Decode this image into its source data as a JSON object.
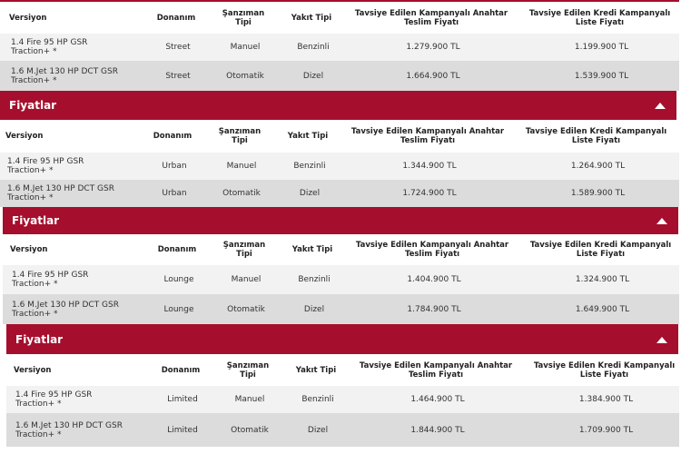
{
  "sections": [
    {
      "headers": [
        "Versiyon",
        "Donanım",
        "Şanzıman Tipi",
        "Yakıt Tipi",
        "Tavsiye Edilen Kampanyalı Anahtar Teslim Fiyatı",
        "Tavsiye Edilen Kredi Kampanyalı Liste Fiyatı"
      ],
      "rows": [
        [
          "1.4 Fire 95 HP GSR Traction+ *",
          "Street",
          "Manuel",
          "Benzinli",
          "1.279.900 TL",
          "1.199.900 TL"
        ],
        [
          "1.6 M.Jet 130 HP DCT GSR Traction+ *",
          "Street",
          "Otomatik",
          "Dizel",
          "1.664.900 TL",
          "1.539.900 TL"
        ]
      ]
    },
    {
      "title": "Fiyatlar",
      "headers": [
        "Versiyon",
        "Donanım",
        "Şanzıman Tipi",
        "Yakıt Tipi",
        "Tavsiye Edilen Kampanyalı Anahtar Teslim Fiyatı",
        "Tavsiye Edilen Kredi Kampanyalı Liste Fiyatı"
      ],
      "rows": [
        [
          "1.4 Fire 95 HP GSR Traction+ *",
          "Urban",
          "Manuel",
          "Benzinli",
          "1.344.900 TL",
          "1.264.900 TL"
        ],
        [
          "1.6 M.Jet 130 HP DCT GSR Traction+ *",
          "Urban",
          "Otomatik",
          "Dizel",
          "1.724.900 TL",
          "1.589.900 TL"
        ]
      ]
    },
    {
      "title": "Fiyatlar",
      "headers": [
        "Versiyon",
        "Donanım",
        "Şanzıman Tipi",
        "Yakıt Tipi",
        "Tavsiye Edilen Kampanyalı Anahtar Teslim Fiyatı",
        "Tavsiye Edilen Kredi Kampanyalı Liste Fiyatı"
      ],
      "rows": [
        [
          "1.4 Fire 95 HP GSR Traction+ *",
          "Lounge",
          "Manuel",
          "Benzinli",
          "1.404.900 TL",
          "1.324.900 TL"
        ],
        [
          "1.6 M.Jet 130 HP DCT GSR Traction+ *",
          "Lounge",
          "Otomatik",
          "Dizel",
          "1.784.900 TL",
          "1.649.900 TL"
        ]
      ]
    },
    {
      "title": "Fiyatlar",
      "headers": [
        "Versiyon",
        "Donanım",
        "Şanzıman Tipi",
        "Yakıt Tipi",
        "Tavsiye Edilen Kampanyalı Anahtar Teslim Fiyatı",
        "Tavsiye Edilen Kredi Kampanyalı Liste Fiyatı"
      ],
      "rows": [
        [
          "1.4 Fire 95 HP GSR Traction+ *",
          "Limited",
          "Manuel",
          "Benzinli",
          "1.464.900 TL",
          "1.384.900 TL"
        ],
        [
          "1.6 M.Jet 130 HP DCT GSR Traction+ *",
          "Limited",
          "Otomatik",
          "Dizel",
          "1.844.900 TL",
          "1.709.900 TL"
        ]
      ]
    }
  ]
}
